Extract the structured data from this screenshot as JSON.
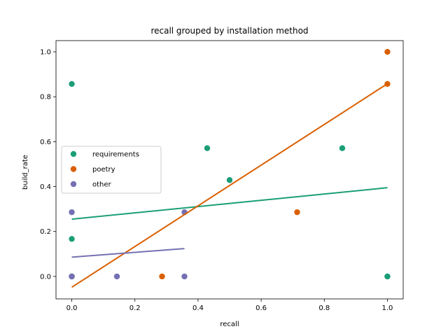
{
  "chart_data": {
    "type": "scatter",
    "title": "recall grouped by installation method",
    "xlabel": "recall",
    "ylabel": "build_rate",
    "xlim": [
      -0.05,
      1.05
    ],
    "ylim": [
      -0.1,
      1.05
    ],
    "xticks": [
      0.0,
      0.2,
      0.4,
      0.6,
      0.8,
      1.0
    ],
    "yticks": [
      0.0,
      0.2,
      0.4,
      0.6,
      0.8,
      1.0
    ],
    "xtick_labels": [
      "0.0",
      "0.2",
      "0.4",
      "0.6",
      "0.8",
      "1.0"
    ],
    "ytick_labels": [
      "0.0",
      "0.2",
      "0.4",
      "0.6",
      "0.8",
      "1.0"
    ],
    "grid": false,
    "legend_position": "center-left",
    "series": [
      {
        "name": "requirements",
        "color": "#1b9e77",
        "points": [
          [
            0.0,
            0.857
          ],
          [
            0.0,
            0.167
          ],
          [
            0.0,
            0.0
          ],
          [
            0.429,
            0.571
          ],
          [
            0.5,
            0.429
          ],
          [
            0.857,
            0.571
          ],
          [
            1.0,
            0.0
          ],
          [
            1.0,
            0.0
          ]
        ],
        "fit": {
          "x": [
            0.0,
            1.0
          ],
          "y": [
            0.255,
            0.395
          ]
        }
      },
      {
        "name": "poetry",
        "color": "#d95f02",
        "points": [
          [
            0.0,
            0.0
          ],
          [
            0.286,
            0.0
          ],
          [
            0.714,
            0.286
          ],
          [
            1.0,
            1.0
          ],
          [
            1.0,
            0.857
          ]
        ],
        "fit": {
          "x": [
            0.0,
            1.0
          ],
          "y": [
            -0.048,
            0.858
          ]
        }
      },
      {
        "name": "other",
        "color": "#7570b3",
        "points": [
          [
            0.0,
            0.286
          ],
          [
            0.0,
            0.0
          ],
          [
            0.0,
            0.0
          ],
          [
            0.143,
            0.0
          ],
          [
            0.357,
            0.286
          ],
          [
            0.357,
            0.0
          ]
        ],
        "fit": {
          "x": [
            0.0,
            0.357
          ],
          "y": [
            0.086,
            0.124
          ]
        }
      }
    ]
  }
}
